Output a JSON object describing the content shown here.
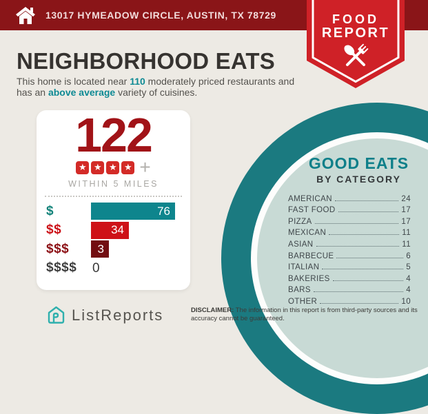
{
  "banner": {
    "address": "13017 HYMEADOW CIRCLE, AUSTIN, TX 78729"
  },
  "badge": {
    "line1": "FOOD",
    "line2": "REPORT"
  },
  "header": {
    "title": "NEIGHBORHOOD EATS",
    "subtitle": {
      "line1_pre": "This home is located near ",
      "line1_highlight": "110",
      "line1_post": " moderately priced restaurants and",
      "line2_pre": "has an ",
      "line2_highlight": "above average",
      "line2_post": " variety of cuisines."
    }
  },
  "stats_card": {
    "count": "122",
    "rating_stars": 4,
    "rating_plus": "+",
    "caption": "WITHIN 5 MILES"
  },
  "chart_data": [
    {
      "type": "bar",
      "title": "Restaurant count by price level within 5 miles",
      "categories": [
        "$",
        "$$",
        "$$$",
        "$$$$"
      ],
      "values": [
        76,
        34,
        3,
        0
      ],
      "colors": [
        "#0E858D",
        "#CE1117",
        "#720D11",
        "#3E3E3E"
      ],
      "label_colors": [
        "#13837A",
        "#CC1118",
        "#8C1015",
        "#3E3E3E"
      ],
      "xlim": [
        0,
        76
      ],
      "orientation": "horizontal",
      "value_labels": "inside-end"
    },
    {
      "type": "table",
      "title": "GOOD EATS BY CATEGORY",
      "categories": [
        "AMERICAN",
        "FAST FOOD",
        "PIZZA",
        "MEXICAN",
        "ASIAN",
        "BARBECUE",
        "ITALIAN",
        "BAKERIES",
        "BARS",
        "OTHER"
      ],
      "values": [
        24,
        17,
        17,
        11,
        11,
        6,
        5,
        4,
        4,
        10
      ]
    }
  ],
  "good_eats": {
    "title": "GOOD EATS",
    "subtitle": "BY CATEGORY",
    "items": [
      {
        "label": "AMERICAN",
        "value": "24"
      },
      {
        "label": "FAST FOOD",
        "value": "17"
      },
      {
        "label": "PIZZA",
        "value": "17"
      },
      {
        "label": "MEXICAN",
        "value": "11"
      },
      {
        "label": "ASIAN",
        "value": "11"
      },
      {
        "label": "BARBECUE",
        "value": "6"
      },
      {
        "label": "ITALIAN",
        "value": "5"
      },
      {
        "label": "BAKERIES",
        "value": "4"
      },
      {
        "label": "BARS",
        "value": "4"
      },
      {
        "label": "OTHER",
        "value": "10"
      }
    ]
  },
  "footer": {
    "brand": "ListReports",
    "disclaimer_label": "DISCLAIMER:",
    "disclaimer_text": " The information in this report is from third-party sources and its accuracy cannot be guaranteed."
  },
  "colors": {
    "background": "#EDEAE4",
    "banner_red": "#8A1518",
    "badge_red": "#CF2127",
    "accent_teal": "#0E8A94",
    "big_number_red": "#A11318",
    "star_red": "#D32B27",
    "circle_teal": "#1B7A80",
    "circle_interior": "#C8DAD5"
  }
}
